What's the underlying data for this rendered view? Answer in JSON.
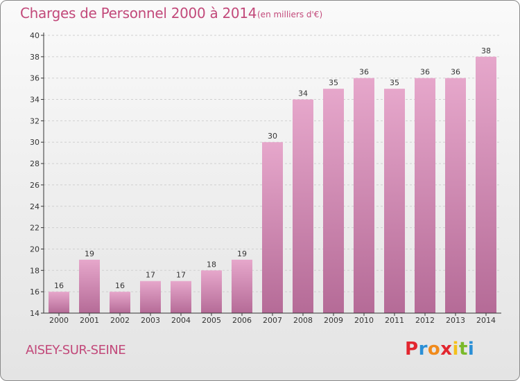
{
  "header": {
    "title": "Charges de Personnel 2000 à 2014",
    "unit": "(en milliers d'€)"
  },
  "footer": {
    "commune": "AISEY-SUR-SEINE",
    "brand_letters": [
      "P",
      "r",
      "o",
      "x",
      "i",
      "t",
      "i"
    ],
    "brand_colors": [
      "#e2262f",
      "#2a8fd6",
      "#f08a1c",
      "#e2262f",
      "#f4c01a",
      "#7ab929",
      "#2a8fd6"
    ]
  },
  "colors": {
    "bar_top": "#e6a7cb",
    "bar_bottom": "#b56b97",
    "text": "#c2497a",
    "axis": "#333333"
  },
  "chart_data": {
    "type": "bar",
    "categories": [
      "2000",
      "2001",
      "2002",
      "2003",
      "2004",
      "2005",
      "2006",
      "2007",
      "2008",
      "2009",
      "2010",
      "2011",
      "2012",
      "2013",
      "2014"
    ],
    "values": [
      16,
      19,
      16,
      17,
      17,
      18,
      19,
      30,
      34,
      35,
      36,
      35,
      36,
      36,
      38
    ],
    "title": "Charges de Personnel 2000 à 2014",
    "subtitle": "(en milliers d'€)",
    "ylim": [
      14,
      40
    ],
    "yticks": [
      14,
      16,
      18,
      20,
      22,
      24,
      26,
      28,
      30,
      32,
      34,
      36,
      38,
      40
    ],
    "grid": true
  }
}
